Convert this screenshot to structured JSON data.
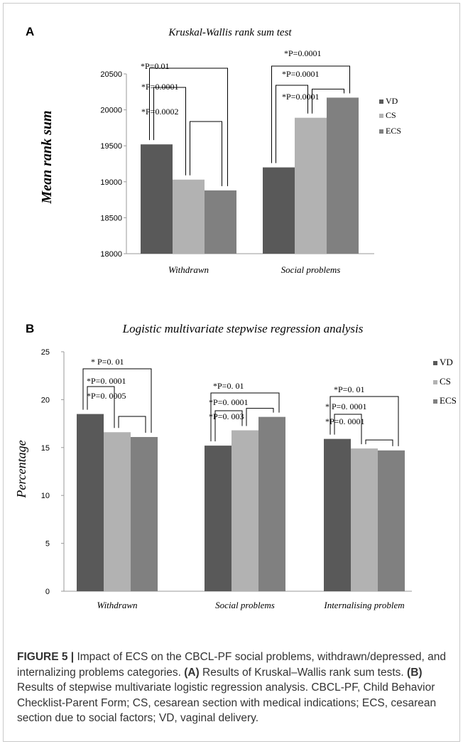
{
  "chart_data": [
    {
      "panel_label": "A",
      "type": "bar",
      "title": "Kruskal-Wallis rank sum test",
      "xlabel": "",
      "ylabel": "Mean rank sum",
      "ylim": [
        18000,
        20500
      ],
      "yticks": [
        "18000",
        "18500",
        "19000",
        "19500",
        "20000",
        "20500"
      ],
      "grid": false,
      "legend_position": "right",
      "categories": [
        "Withdrawn",
        "Social problems"
      ],
      "series": [
        {
          "name": "VD",
          "values": [
            19520,
            19200
          ]
        },
        {
          "name": "CS",
          "values": [
            19030,
            19890
          ]
        },
        {
          "name": "ECS",
          "values": [
            18880,
            20170
          ]
        }
      ],
      "annotations": [
        [
          "*P=0.01",
          "*P=0.0001",
          "*P=0.0002"
        ],
        [
          "*P=0.0001",
          "*P=0.0001",
          "*P=0.0001"
        ]
      ]
    },
    {
      "panel_label": "B",
      "type": "bar",
      "title": "Logistic multivariate stepwise regression analysis",
      "xlabel": "",
      "ylabel": "Percentage",
      "ylim": [
        0,
        25
      ],
      "yticks": [
        "0",
        "5",
        "10",
        "15",
        "20",
        "25"
      ],
      "grid": false,
      "legend_position": "right",
      "categories": [
        "Withdrawn",
        "Social problems",
        "Internalising problem"
      ],
      "series": [
        {
          "name": "VD",
          "values": [
            18.5,
            15.2,
            15.9
          ]
        },
        {
          "name": "CS",
          "values": [
            16.6,
            16.8,
            14.9
          ]
        },
        {
          "name": "ECS",
          "values": [
            16.1,
            18.2,
            14.7
          ]
        }
      ],
      "annotations": [
        [
          "* P=0. 01",
          "*P=0. 0001",
          "*P=0. 0005"
        ],
        [
          "*P=0. 01",
          "*P=0. 0001",
          "*P=0. 003"
        ],
        [
          "*P=0. 01",
          "* P=0. 0001",
          "*P=0. 0001"
        ]
      ]
    }
  ],
  "colors": {
    "VD": "#595959",
    "CS": "#b2b2b2",
    "ECS": "#808080",
    "axis": "#999999",
    "text": "#000000"
  },
  "caption": {
    "figure_label": "FIGURE 5 |",
    "text": " Impact of ECS on the CBCL-PF social problems, withdrawn/depressed, and internalizing problems categories. ",
    "a_label": "(A)",
    "a_text": " Results of Kruskal–Wallis rank sum tests. ",
    "b_label": "(B)",
    "b_text": " Results of stepwise multivariate logistic regression analysis. CBCL-PF, Child Behavior Checklist-Parent Form; CS, cesarean section with medical indications; ECS, cesarean section due to social factors; VD, vaginal delivery."
  }
}
